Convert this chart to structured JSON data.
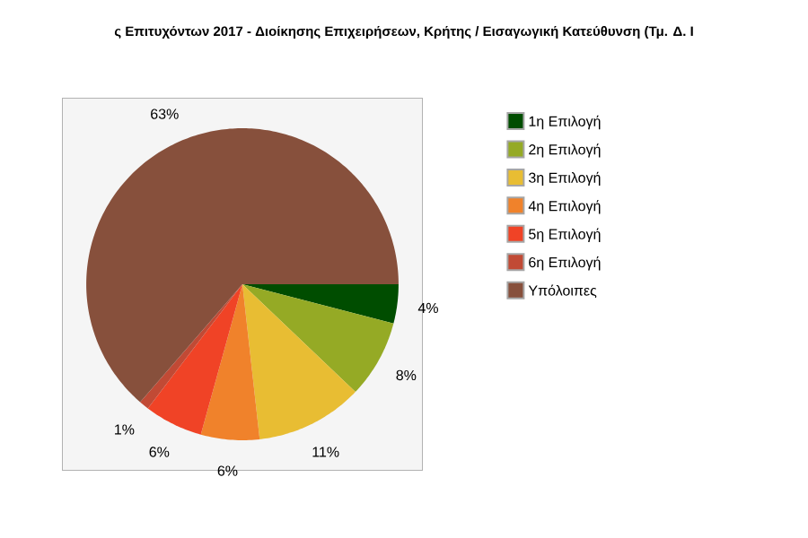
{
  "chart_data": {
    "type": "pie",
    "title": "ς Επιτυχόντων 2017 - Διοίκησης Επιχειρήσεων, Κρήτης / Εισαγωγική Κατεύθυνση (Τμ. Δ. Ι",
    "categories": [
      "1η Επιλογή",
      "2η Επιλογή",
      "3η Επιλογή",
      "4η Επιλογή",
      "5η Επιλογή",
      "6η Επιλογή",
      "Υπόλοιπες"
    ],
    "values": [
      4,
      8,
      11,
      6,
      6,
      1,
      63
    ],
    "colors": [
      "#004d00",
      "#95aa25",
      "#e8bd33",
      "#f0822b",
      "#f04326",
      "#c14a35",
      "#87503c"
    ],
    "value_labels": [
      "4%",
      "8%",
      "11%",
      "6%",
      "6%",
      "1%",
      "63%"
    ],
    "legend": "right"
  }
}
